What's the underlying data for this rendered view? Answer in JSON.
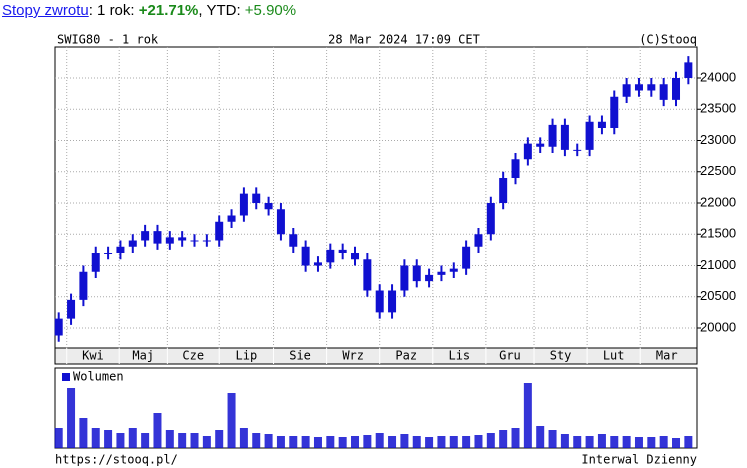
{
  "header": {
    "link": "Stopy zwrotu",
    "period": ": 1 rok: ",
    "return_1y": "+21.71%",
    "ytd_label": ", YTD: ",
    "return_ytd": "+5.90%"
  },
  "footer": {
    "url": "https://stooq.pl/",
    "interval": "Interwal Dzienny"
  },
  "chart_data": [
    {
      "type": "ohlc",
      "title": "SWIG80 - 1 rok",
      "subtitle": "28 Mar 2024 17:09 CET",
      "source": "(C)Stooq",
      "color": "#1010d0",
      "xlim": [
        -0.3,
        51.7
      ],
      "xticks": [
        {
          "value": 0.65,
          "label": "Kwi"
        },
        {
          "value": 4.9,
          "label": "Maj"
        },
        {
          "value": 8.8,
          "label": "Cze"
        },
        {
          "value": 13,
          "label": "Lip"
        },
        {
          "value": 17.4,
          "label": "Sie"
        },
        {
          "value": 21.7,
          "label": "Wrz"
        },
        {
          "value": 26,
          "label": "Paz"
        },
        {
          "value": 30.3,
          "label": "Lis"
        },
        {
          "value": 34.6,
          "label": "Gru"
        },
        {
          "value": 38.5,
          "label": "Sty"
        },
        {
          "value": 42.8,
          "label": "Lut"
        },
        {
          "value": 47.1,
          "label": "Mar"
        }
      ],
      "ylim": [
        19680,
        24496
      ],
      "yticks": [
        20000,
        20500,
        21000,
        21500,
        22000,
        22500,
        23000,
        23500,
        24000
      ],
      "grid": true,
      "open": [
        19880,
        20150,
        20450,
        20900,
        21200,
        21200,
        21300,
        21400,
        21550,
        21350,
        21450,
        21400,
        21400,
        21400,
        21700,
        21800,
        22150,
        22000,
        21900,
        21500,
        21300,
        21000,
        21050,
        21250,
        21200,
        21100,
        20600,
        20250,
        20600,
        21000,
        20750,
        20850,
        20900,
        20950,
        21300,
        21500,
        22000,
        22400,
        22700,
        22950,
        22900,
        23250,
        22850,
        22850,
        23300,
        23200,
        23700,
        23900,
        23800,
        23900,
        23650,
        24000
      ],
      "high": [
        20250,
        20550,
        21000,
        21300,
        21300,
        21400,
        21500,
        21650,
        21650,
        21550,
        21550,
        21500,
        21500,
        21800,
        21900,
        22250,
        22250,
        22100,
        22000,
        21600,
        21400,
        21150,
        21350,
        21350,
        21300,
        21200,
        20700,
        20700,
        21100,
        21100,
        20950,
        21000,
        21050,
        21400,
        21600,
        22100,
        22500,
        22800,
        23050,
        23050,
        23350,
        23350,
        22950,
        23400,
        23400,
        23800,
        24000,
        24000,
        24000,
        24000,
        24100,
        24350
      ],
      "low": [
        19780,
        20050,
        20350,
        20800,
        21100,
        21100,
        21200,
        21300,
        21250,
        21250,
        21300,
        21300,
        21300,
        21300,
        21600,
        21700,
        21900,
        21800,
        21400,
        21200,
        20900,
        20900,
        20950,
        21100,
        21000,
        20500,
        20150,
        20150,
        20500,
        20650,
        20650,
        20750,
        20800,
        20850,
        21200,
        21400,
        21900,
        22300,
        22600,
        22800,
        22800,
        22750,
        22750,
        22750,
        23100,
        23100,
        23600,
        23700,
        23700,
        23550,
        23550,
        23900
      ],
      "close": [
        20150,
        20450,
        20900,
        21200,
        21200,
        21300,
        21400,
        21550,
        21350,
        21450,
        21400,
        21400,
        21400,
        21700,
        21800,
        22150,
        22000,
        21900,
        21500,
        21300,
        21000,
        21050,
        21250,
        21200,
        21100,
        20600,
        20250,
        20600,
        21000,
        20750,
        20850,
        20900,
        20950,
        21300,
        21500,
        22000,
        22400,
        22700,
        22950,
        22900,
        23250,
        22850,
        22850,
        23300,
        23200,
        23700,
        23900,
        23800,
        23900,
        23650,
        24000,
        24250
      ]
    },
    {
      "type": "bar",
      "xlim": [
        -0.3,
        51.7
      ],
      "ylim": [
        0,
        80
      ],
      "series": [
        {
          "name": "Wolumen",
          "color": "#1010d0",
          "values": [
            20,
            60,
            30,
            20,
            18,
            15,
            20,
            15,
            35,
            18,
            15,
            15,
            12,
            18,
            55,
            20,
            15,
            14,
            12,
            12,
            12,
            11,
            12,
            11,
            12,
            13,
            15,
            12,
            14,
            12,
            11,
            12,
            12,
            12,
            13,
            15,
            18,
            20,
            65,
            22,
            18,
            14,
            12,
            12,
            14,
            12,
            12,
            11,
            11,
            12,
            10,
            12
          ]
        }
      ]
    }
  ]
}
